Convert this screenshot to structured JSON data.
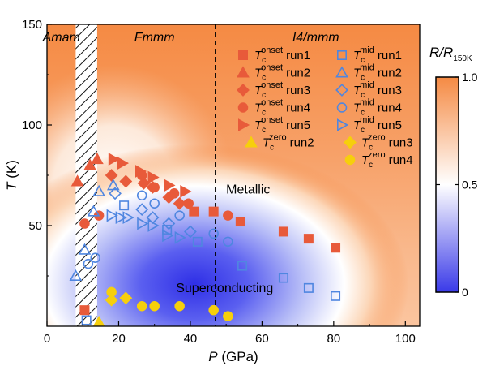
{
  "chart_data": {
    "type": "scatter",
    "xlabel": {
      "var": "P",
      "unit": " (GPa)"
    },
    "ylabel": {
      "var": "T",
      "unit": " (K)"
    },
    "xlim": [
      0,
      104
    ],
    "ylim": [
      0,
      150
    ],
    "xticks": [
      0,
      20,
      40,
      60,
      80,
      100
    ],
    "yticks": [
      50,
      100,
      150
    ],
    "phase_boundary_dashed_x": 47,
    "hatched_region_x": [
      8,
      14
    ],
    "phases": [
      {
        "label": "Amam",
        "x": 4
      },
      {
        "label": "Fmmm",
        "x": 30
      },
      {
        "label": "I4/mmm",
        "x": 75
      }
    ],
    "region_labels": [
      {
        "label": "Metallic",
        "x": 50,
        "y": 66
      },
      {
        "label": "Superconducting",
        "x": 36,
        "y": 17
      }
    ],
    "colorbar": {
      "title_main": "R/R",
      "title_sub": "150K",
      "ticks": [
        1.0,
        0.5,
        0
      ],
      "tick_labels": [
        "1.0",
        "0.5",
        "0"
      ],
      "colors": [
        "#f58a43",
        "#ffffff",
        "#3a3ae8"
      ]
    },
    "background_color_top": "#f68a42",
    "filled_color": "#e85a3a",
    "open_color": "#4f86e0",
    "zero_color": "#f6cf0c",
    "series": [
      {
        "name": "Tc onset run1",
        "marker": "square",
        "filled": true,
        "x": [
          10.5,
          41,
          46.5,
          54,
          66,
          73,
          80.5
        ],
        "y": [
          8,
          57,
          57,
          52,
          47,
          43.5,
          39
        ]
      },
      {
        "name": "Tc onset run2",
        "marker": "triangle-up",
        "filled": true,
        "x": [
          8.5,
          12,
          14
        ],
        "y": [
          72,
          80,
          83
        ]
      },
      {
        "name": "Tc onset run3",
        "marker": "diamond",
        "filled": true,
        "x": [
          18,
          22,
          27,
          29.5,
          34,
          37
        ],
        "y": [
          75,
          72,
          71,
          69,
          64,
          61
        ]
      },
      {
        "name": "Tc onset run4",
        "marker": "circle",
        "filled": true,
        "x": [
          10.5,
          14.5,
          26.5,
          30,
          35.5,
          39.5,
          50.5
        ],
        "y": [
          51,
          55,
          75,
          69,
          66,
          61,
          55
        ]
      },
      {
        "name": "Tc onset run5",
        "marker": "triangle-right",
        "filled": true,
        "x": [
          18.5,
          21,
          26,
          29.5,
          34,
          38.5
        ],
        "y": [
          83,
          81,
          77,
          74,
          70,
          67
        ]
      },
      {
        "name": "Tc zero run2",
        "marker": "triangle-up",
        "filled": true,
        "zero": true,
        "x": [
          14.5
        ],
        "y": [
          2
        ]
      },
      {
        "name": "Tc mid run1",
        "marker": "square",
        "filled": false,
        "x": [
          11,
          21.5,
          33.5,
          42,
          54.5,
          66,
          73,
          80.5
        ],
        "y": [
          3,
          60,
          48,
          42,
          30,
          24,
          19,
          15
        ]
      },
      {
        "name": "Tc mid run2",
        "marker": "triangle-up",
        "filled": false,
        "x": [
          8,
          10.5,
          13,
          14.5,
          18.5
        ],
        "y": [
          25,
          38,
          57,
          67,
          70
        ]
      },
      {
        "name": "Tc mid run3",
        "marker": "diamond",
        "filled": false,
        "x": [
          19,
          26.5,
          29.5,
          34,
          40
        ],
        "y": [
          66,
          58,
          54,
          51,
          47
        ]
      },
      {
        "name": "Tc mid run4",
        "marker": "circle",
        "filled": false,
        "x": [
          11.5,
          13.5,
          26.5,
          30,
          37,
          46.5,
          50.5
        ],
        "y": [
          31,
          34,
          65,
          61,
          55,
          46,
          42
        ]
      },
      {
        "name": "Tc mid run5",
        "marker": "triangle-right",
        "filled": false,
        "x": [
          18,
          20.5,
          22.5,
          26.5,
          29.5,
          33.5,
          37
        ],
        "y": [
          55,
          54,
          54,
          51,
          50,
          45,
          44
        ]
      },
      {
        "name": "Tc zero run3",
        "marker": "diamond",
        "filled": true,
        "zero": true,
        "x": [
          18,
          22
        ],
        "y": [
          13,
          14
        ]
      },
      {
        "name": "Tc zero run4",
        "marker": "circle",
        "filled": true,
        "zero": true,
        "x": [
          18,
          26.5,
          30,
          37,
          46.5,
          50.5
        ],
        "y": [
          17,
          10,
          10,
          10,
          8,
          5
        ]
      }
    ],
    "legend": {
      "columns": [
        [
          {
            "series": 0,
            "sup": "onset",
            "run": "run1"
          },
          {
            "series": 1,
            "sup": "onset",
            "run": "run2"
          },
          {
            "series": 2,
            "sup": "onset",
            "run": "run3"
          },
          {
            "series": 3,
            "sup": "onset",
            "run": "run4"
          },
          {
            "series": 4,
            "sup": "onset",
            "run": "run5"
          },
          {
            "series": 5,
            "sup": "zero",
            "run": "run2"
          }
        ],
        [
          {
            "series": 6,
            "sup": "mid",
            "run": "run1"
          },
          {
            "series": 7,
            "sup": "mid",
            "run": "run2"
          },
          {
            "series": 8,
            "sup": "mid",
            "run": "run3"
          },
          {
            "series": 9,
            "sup": "mid",
            "run": "run4"
          },
          {
            "series": 10,
            "sup": "mid",
            "run": "run5"
          },
          {
            "series": 11,
            "sup": "zero",
            "run": "run3"
          },
          {
            "series": 12,
            "sup": "zero",
            "run": "run4"
          }
        ]
      ]
    }
  }
}
